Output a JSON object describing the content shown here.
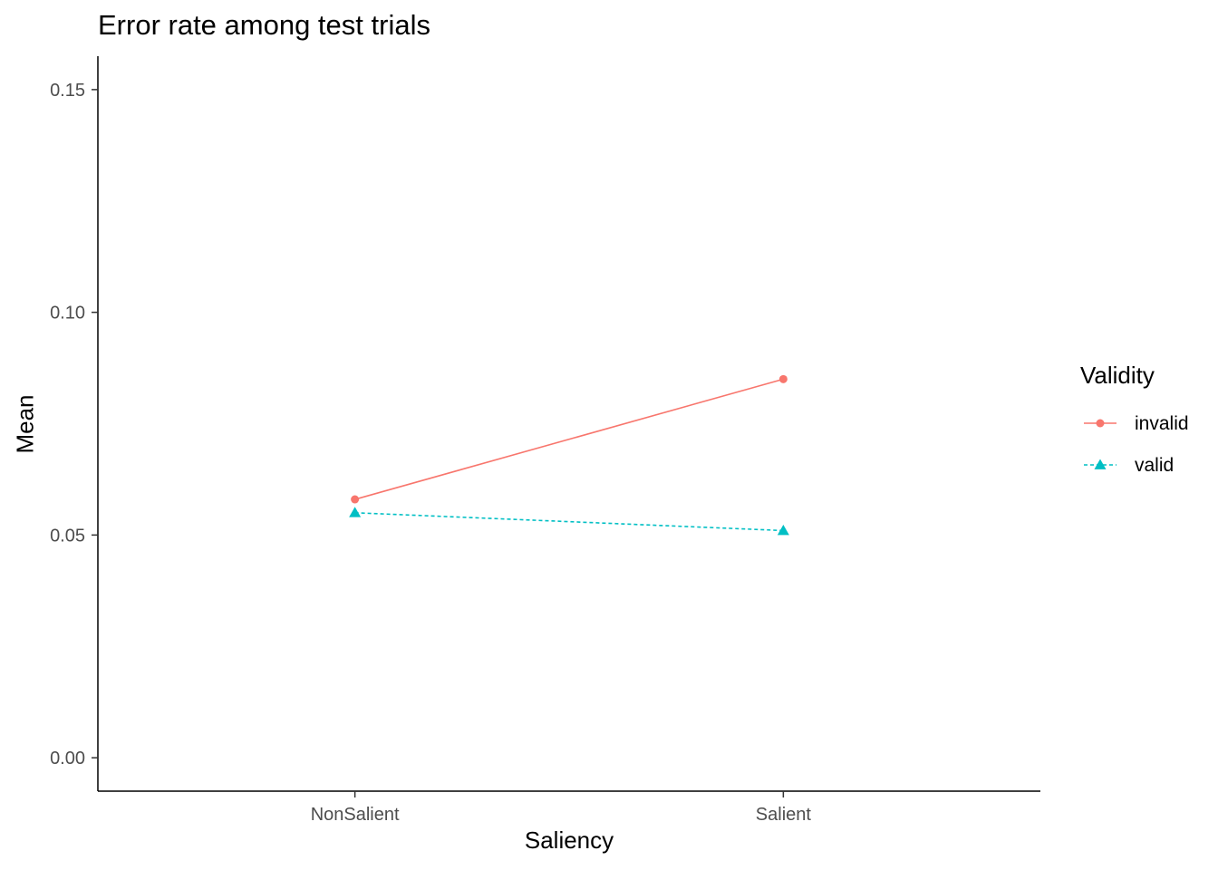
{
  "chart_data": {
    "type": "line",
    "title": "Error rate among test trials",
    "xlabel": "Saliency",
    "ylabel": "Mean",
    "categories": [
      "NonSalient",
      "Salient"
    ],
    "ylim": [
      -0.0075,
      0.1575
    ],
    "yticks": [
      "0.00",
      "0.05",
      "0.10",
      "0.15"
    ],
    "ytick_values": [
      0.0,
      0.05,
      0.1,
      0.15
    ],
    "grid": false,
    "legend": {
      "title": "Validity",
      "position": "right",
      "entries": [
        "invalid",
        "valid"
      ]
    },
    "series": [
      {
        "name": "invalid",
        "values": [
          0.058,
          0.085
        ],
        "color": "#F8766D",
        "marker": "circle",
        "linestyle": "solid"
      },
      {
        "name": "valid",
        "values": [
          0.055,
          0.051
        ],
        "color": "#00BFC4",
        "marker": "triangle",
        "linestyle": "dashed"
      }
    ]
  }
}
